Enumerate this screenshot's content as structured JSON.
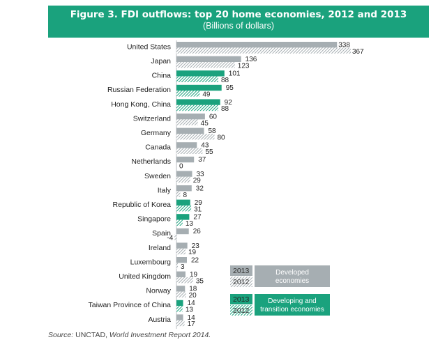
{
  "header": {
    "title": "Figure 3. FDI outflows: top 20 home economies, 2012 and 2013",
    "subtitle": "(Billions of dollars)"
  },
  "source": {
    "label": "Source:",
    "org": "UNCTAD,",
    "publication": "World Investment Report 2014."
  },
  "colors": {
    "developed": "#a6aeb2",
    "developing": "#1aa27d",
    "header": "#1aa27d"
  },
  "chart_data": {
    "type": "bar",
    "orientation": "horizontal",
    "categories": [
      "United States",
      "Japan",
      "China",
      "Russian Federation",
      "Hong Kong, China",
      "Switzerland",
      "Germany",
      "Canada",
      "Netherlands",
      "Sweden",
      "Italy",
      "Republic of Korea",
      "Singapore",
      "Spain",
      "Ireland",
      "Luxembourg",
      "United Kingdom",
      "Norway",
      "Taiwan Province of China",
      "Austria"
    ],
    "groups": [
      "developed",
      "developed",
      "developing",
      "developing",
      "developing",
      "developed",
      "developed",
      "developed",
      "developed",
      "developed",
      "developed",
      "developing",
      "developing",
      "developed",
      "developed",
      "developed",
      "developed",
      "developed",
      "developing",
      "developed"
    ],
    "series": [
      {
        "name": "2013",
        "values": [
          338,
          136,
          101,
          95,
          92,
          60,
          58,
          43,
          37,
          33,
          32,
          29,
          27,
          26,
          23,
          22,
          19,
          18,
          14,
          14
        ]
      },
      {
        "name": "2012",
        "values": [
          367,
          123,
          88,
          49,
          88,
          45,
          80,
          55,
          0,
          29,
          8,
          31,
          13,
          -4,
          19,
          3,
          35,
          20,
          13,
          17
        ]
      }
    ],
    "title": "Figure 3. FDI outflows: top 20 home economies, 2012 and 2013",
    "subtitle": "(Billions of dollars)",
    "legend": [
      {
        "key": "developed",
        "year_solid": "2013",
        "year_hatched": "2012",
        "label": "Developed economies"
      },
      {
        "key": "developing",
        "year_solid": "2013",
        "year_hatched": "2012",
        "label": "Developing and transition economies"
      }
    ],
    "legend_position": "bottom-right",
    "grid": false
  }
}
